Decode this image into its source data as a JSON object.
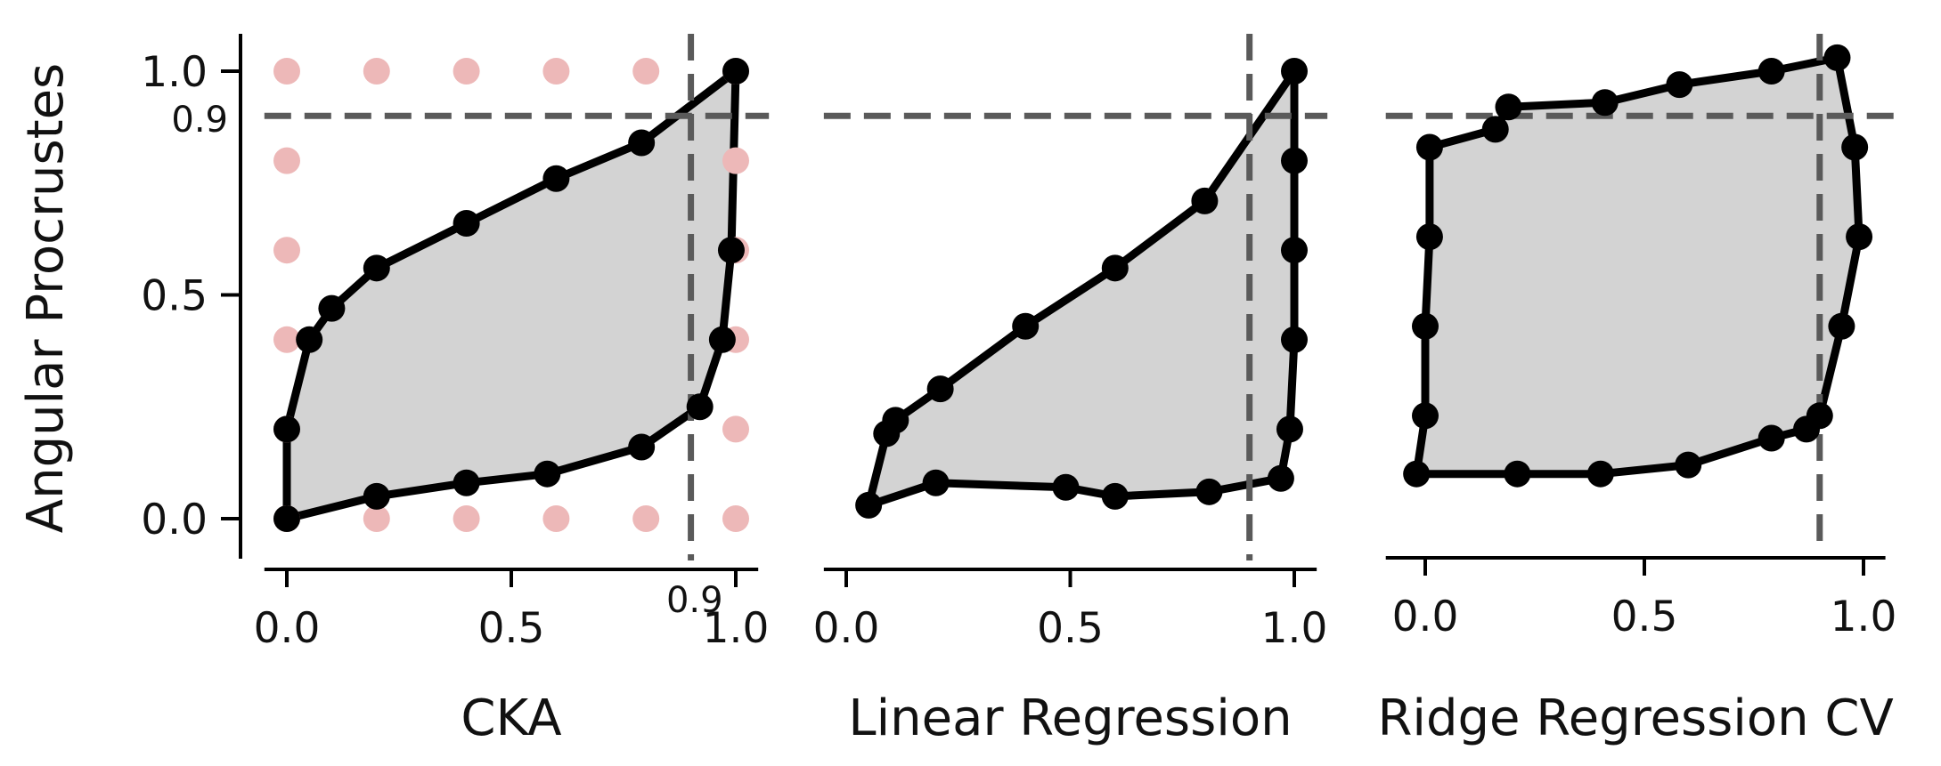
{
  "y_axis_title": "Angular Procrustes",
  "y_ticks": [
    {
      "value": 0.0,
      "label": "0.0"
    },
    {
      "value": 0.5,
      "label": "0.5"
    },
    {
      "value": 1.0,
      "label": "1.0"
    }
  ],
  "y_ref_label": "0.9",
  "x_ref_label": "0.9",
  "colors": {
    "hull_fill": "#d3d3d3",
    "hull_stroke": "#000000",
    "reference_line": "#5a5a5a",
    "grid_points": "#edb8b8"
  },
  "chart_data": [
    {
      "type": "scatter",
      "title": "",
      "xlabel": "CKA",
      "ylabel": "Angular Procrustes",
      "xlim": [
        -0.05,
        1.05
      ],
      "ylim": [
        -0.09,
        1.09
      ],
      "x_ticks": [
        {
          "value": 0.0,
          "label": "0.0"
        },
        {
          "value": 0.5,
          "label": "0.5"
        },
        {
          "value": 1.0,
          "label": "1.0"
        }
      ],
      "reference_lines": {
        "x": 0.9,
        "y": 0.9
      },
      "hull_points": [
        [
          0.0,
          0.0
        ],
        [
          0.2,
          0.05
        ],
        [
          0.4,
          0.08
        ],
        [
          0.58,
          0.1
        ],
        [
          0.79,
          0.16
        ],
        [
          0.92,
          0.25
        ],
        [
          0.97,
          0.4
        ],
        [
          0.99,
          0.6
        ],
        [
          1.0,
          1.0
        ],
        [
          0.79,
          0.84
        ],
        [
          0.6,
          0.76
        ],
        [
          0.4,
          0.66
        ],
        [
          0.2,
          0.56
        ],
        [
          0.1,
          0.47
        ],
        [
          0.05,
          0.4
        ],
        [
          0.0,
          0.2
        ]
      ],
      "grid_points": [
        [
          0.0,
          1.0
        ],
        [
          0.2,
          1.0
        ],
        [
          0.4,
          1.0
        ],
        [
          0.6,
          1.0
        ],
        [
          0.8,
          1.0
        ],
        [
          1.0,
          1.0
        ],
        [
          0.0,
          0.8
        ],
        [
          1.0,
          0.8
        ],
        [
          0.0,
          0.6
        ],
        [
          1.0,
          0.6
        ],
        [
          0.0,
          0.4
        ],
        [
          1.0,
          0.4
        ],
        [
          0.0,
          0.2
        ],
        [
          1.0,
          0.2
        ],
        [
          0.0,
          0.0
        ],
        [
          0.2,
          0.0
        ],
        [
          0.4,
          0.0
        ],
        [
          0.6,
          0.0
        ],
        [
          0.8,
          0.0
        ],
        [
          1.0,
          0.0
        ]
      ]
    },
    {
      "type": "scatter",
      "title": "",
      "xlabel": "Linear Regression",
      "ylabel": "Angular Procrustes",
      "xlim": [
        -0.05,
        1.05
      ],
      "ylim": [
        -0.09,
        1.09
      ],
      "x_ticks": [
        {
          "value": 0.0,
          "label": "0.0"
        },
        {
          "value": 0.5,
          "label": "0.5"
        },
        {
          "value": 1.0,
          "label": "1.0"
        }
      ],
      "reference_lines": {
        "x": 0.9,
        "y": 0.9
      },
      "hull_points": [
        [
          0.05,
          0.03
        ],
        [
          0.2,
          0.08
        ],
        [
          0.49,
          0.07
        ],
        [
          0.6,
          0.05
        ],
        [
          0.81,
          0.06
        ],
        [
          0.97,
          0.09
        ],
        [
          0.99,
          0.2
        ],
        [
          1.0,
          0.4
        ],
        [
          1.0,
          0.6
        ],
        [
          1.0,
          0.8
        ],
        [
          1.0,
          1.0
        ],
        [
          0.8,
          0.71
        ],
        [
          0.6,
          0.56
        ],
        [
          0.4,
          0.43
        ],
        [
          0.21,
          0.29
        ],
        [
          0.11,
          0.22
        ],
        [
          0.09,
          0.19
        ]
      ],
      "grid_points": []
    },
    {
      "type": "scatter",
      "title": "",
      "xlabel": "Ridge Regression CV",
      "ylabel": "Angular Procrustes",
      "xlim": [
        -0.09,
        1.05
      ],
      "ylim": [
        -0.09,
        1.09
      ],
      "x_ticks": [
        {
          "value": 0.0,
          "label": "0.0"
        },
        {
          "value": 0.5,
          "label": "0.5"
        },
        {
          "value": 1.0,
          "label": "1.0"
        }
      ],
      "reference_lines": {
        "x": 0.9,
        "y": 0.9
      },
      "hull_points": [
        [
          -0.02,
          0.1
        ],
        [
          0.21,
          0.1
        ],
        [
          0.4,
          0.1
        ],
        [
          0.6,
          0.12
        ],
        [
          0.79,
          0.18
        ],
        [
          0.87,
          0.2
        ],
        [
          0.9,
          0.23
        ],
        [
          0.95,
          0.43
        ],
        [
          0.99,
          0.63
        ],
        [
          0.98,
          0.83
        ],
        [
          0.94,
          1.03
        ],
        [
          0.79,
          1.0
        ],
        [
          0.58,
          0.97
        ],
        [
          0.41,
          0.93
        ],
        [
          0.19,
          0.92
        ],
        [
          0.16,
          0.87
        ],
        [
          0.01,
          0.83
        ],
        [
          0.01,
          0.63
        ],
        [
          0.0,
          0.43
        ],
        [
          0.0,
          0.23
        ]
      ],
      "grid_points": []
    }
  ]
}
